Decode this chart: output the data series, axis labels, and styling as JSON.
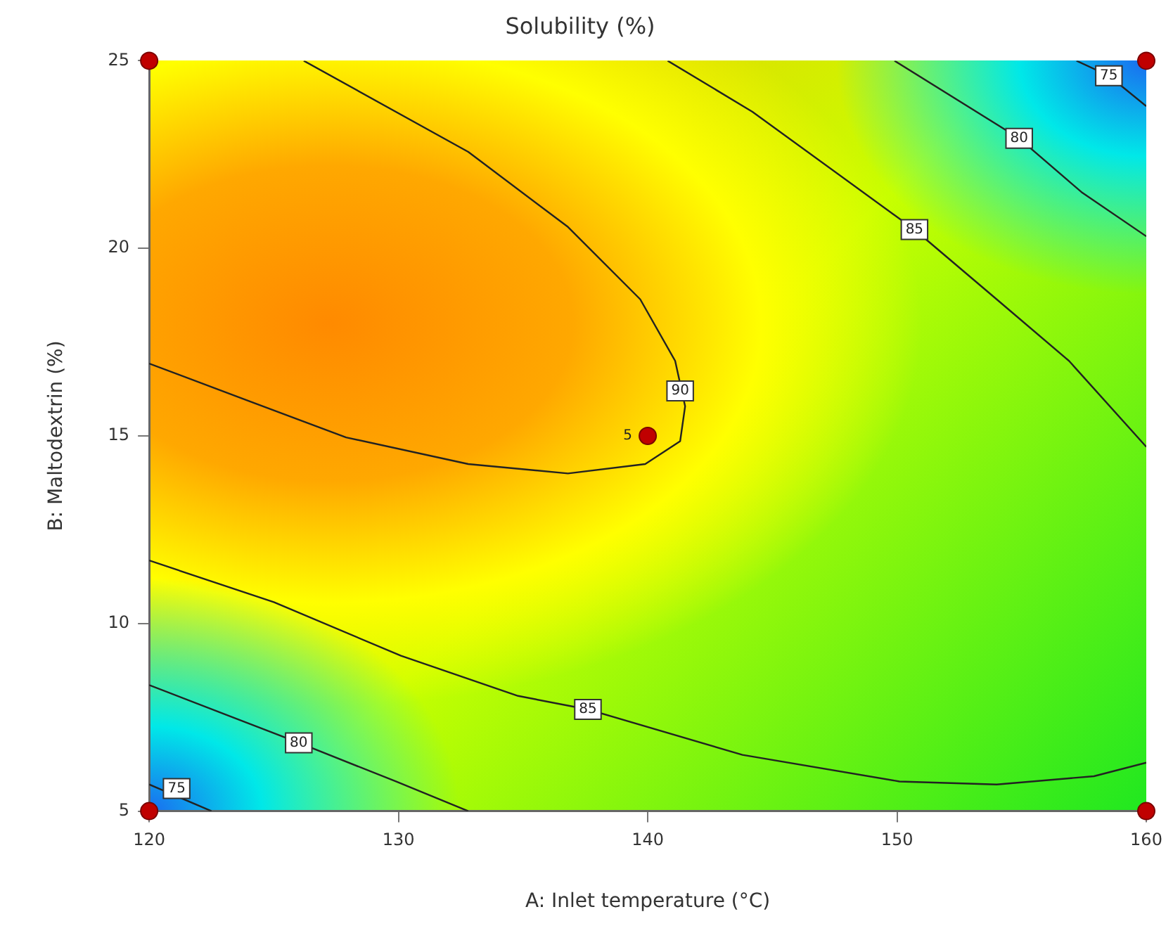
{
  "chart_data": {
    "type": "line",
    "title": "Solubility (%)",
    "xlabel": "A: Inlet temperature (°C)",
    "ylabel": "B: Maltodextrin (%)",
    "xlim": [
      120,
      160
    ],
    "xticks": [
      120,
      130,
      140,
      150,
      160
    ],
    "ylim": [
      5,
      25
    ],
    "yticks": [
      5,
      10,
      15,
      20,
      25
    ],
    "grid": false,
    "legend": false,
    "line_style": "solid",
    "series": [
      {
        "marker": "none",
        "color": "#222222",
        "x": [
          126.2,
          132.8,
          136.8,
          139.7,
          141.1,
          141.5,
          141.3,
          139.9,
          136.8,
          132.8,
          127.9,
          124.0,
          120
        ],
        "values": [
          25,
          22.57,
          20.57,
          18.64,
          17.0,
          15.79,
          14.86,
          14.25,
          14.0,
          14.25,
          14.96,
          15.93,
          16.93
        ]
      },
      {
        "marker": "none",
        "color": "#222222",
        "x": [
          140.8,
          144.2,
          150.7,
          154.0,
          156.9,
          160
        ],
        "values": [
          25,
          23.64,
          20.5,
          18.64,
          17.0,
          14.71
        ]
      },
      {
        "marker": "none",
        "color": "#222222",
        "x": [
          149.9,
          154.9,
          157.4,
          160
        ],
        "values": [
          25,
          22.93,
          21.5,
          20.32
        ]
      },
      {
        "marker": "none",
        "color": "#222222",
        "x": [
          157.2,
          158.5,
          160
        ],
        "values": [
          25,
          24.6,
          23.79
        ]
      },
      {
        "marker": "none",
        "color": "#222222",
        "x": [
          120,
          125,
          130.1,
          134.8,
          137.6,
          143.8,
          150.1,
          154.0,
          157.9,
          160
        ],
        "values": [
          11.68,
          10.57,
          9.14,
          8.07,
          7.71,
          6.5,
          5.79,
          5.71,
          5.93,
          6.29
        ]
      },
      {
        "marker": "none",
        "color": "#222222",
        "x": [
          120,
          126.0,
          129.9,
          132.8
        ],
        "values": [
          8.36,
          6.82,
          5.79,
          5
        ]
      },
      {
        "marker": "none",
        "color": "#222222",
        "x": [
          120,
          122.5
        ],
        "values": [
          5.71,
          5
        ]
      },
      {
        "type": "scatter",
        "marker": "circle",
        "color": "#c00000",
        "x": [
          120,
          160,
          120,
          160,
          140
        ],
        "values": [
          25,
          25,
          5,
          5,
          15
        ]
      }
    ],
    "annotations": [
      {
        "text": "90",
        "x": 141.3,
        "y": 16.2
      },
      {
        "text": "85",
        "x": 150.7,
        "y": 20.5
      },
      {
        "text": "80",
        "x": 154.9,
        "y": 22.93
      },
      {
        "text": "75",
        "x": 158.5,
        "y": 24.6
      },
      {
        "text": "85",
        "x": 137.6,
        "y": 7.71
      },
      {
        "text": "80",
        "x": 126.0,
        "y": 6.82
      },
      {
        "text": "75",
        "x": 121.1,
        "y": 5.6
      },
      {
        "text": "5",
        "x": 140,
        "y": 15
      }
    ]
  }
}
